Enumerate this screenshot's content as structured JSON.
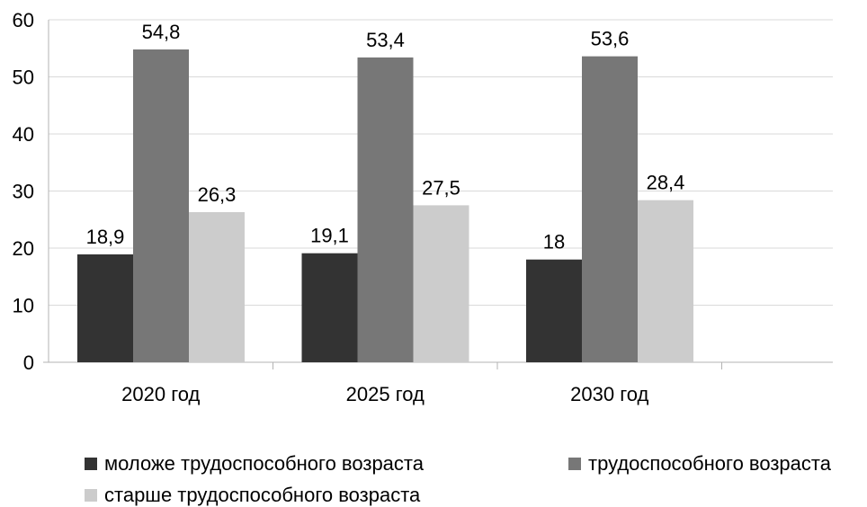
{
  "chart_data": {
    "type": "bar",
    "categories": [
      "2020 год",
      "2025 год",
      "2030 год"
    ],
    "series": [
      {
        "name": "моложе трудоспособного возраста",
        "values": [
          18.9,
          19.1,
          18
        ],
        "labels": [
          "18,9",
          "19,1",
          "18"
        ],
        "color": "#333333"
      },
      {
        "name": "трудоспособного возраста",
        "values": [
          54.8,
          53.4,
          53.6
        ],
        "labels": [
          "54,8",
          "53,4",
          "53,6"
        ],
        "color": "#777777"
      },
      {
        "name": "старше трудоспособного возраста",
        "values": [
          26.3,
          27.5,
          28.4
        ],
        "labels": [
          "26,3",
          "27,5",
          "28,4"
        ],
        "color": "#cccccc"
      }
    ],
    "yticks": [
      "0",
      "10",
      "20",
      "30",
      "40",
      "50",
      "60"
    ],
    "ylim": [
      0,
      60
    ],
    "grid": true,
    "legend_position": "bottom",
    "title": "",
    "xlabel": "",
    "ylabel": ""
  }
}
